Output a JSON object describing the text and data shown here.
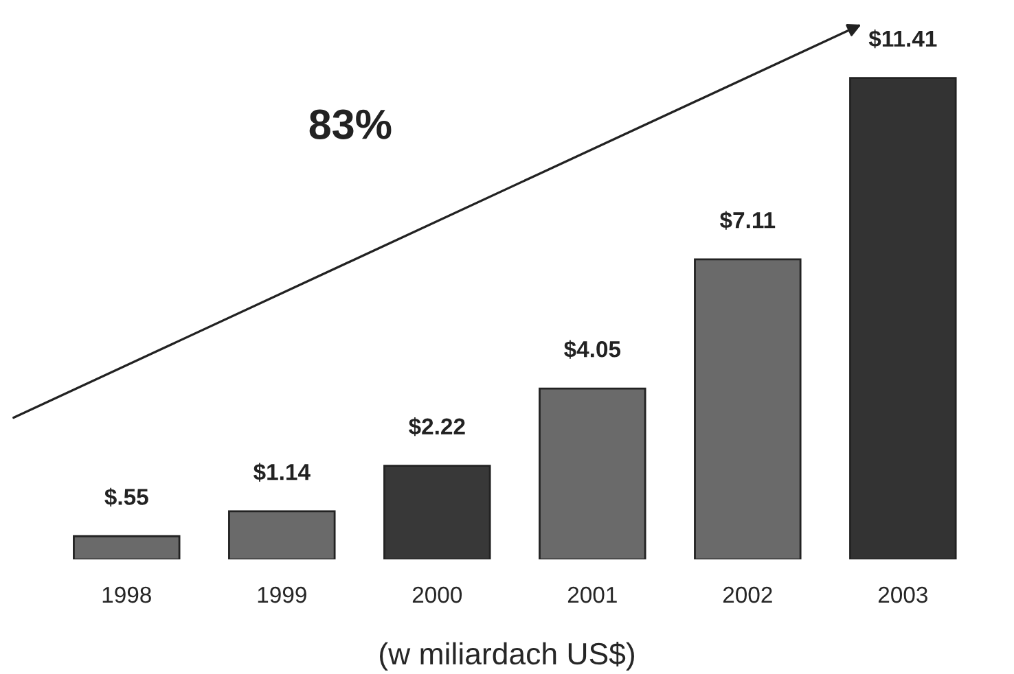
{
  "chart_data": {
    "type": "bar",
    "categories": [
      "1998",
      "1999",
      "2000",
      "2001",
      "2002",
      "2003"
    ],
    "values": [
      0.55,
      1.14,
      2.22,
      4.05,
      7.11,
      11.41
    ],
    "value_labels": [
      "$.55",
      "$1.14",
      "$2.22",
      "$4.05",
      "$7.11",
      "$11.41"
    ],
    "colors": [
      "#6a6a6a",
      "#6a6a6a",
      "#383838",
      "#6a6a6a",
      "#6a6a6a",
      "#333333"
    ],
    "xlabel": "(w miliardach US$)",
    "annotations": [
      "83%"
    ],
    "tick_labels": "x",
    "grid": false,
    "legend": false
  }
}
